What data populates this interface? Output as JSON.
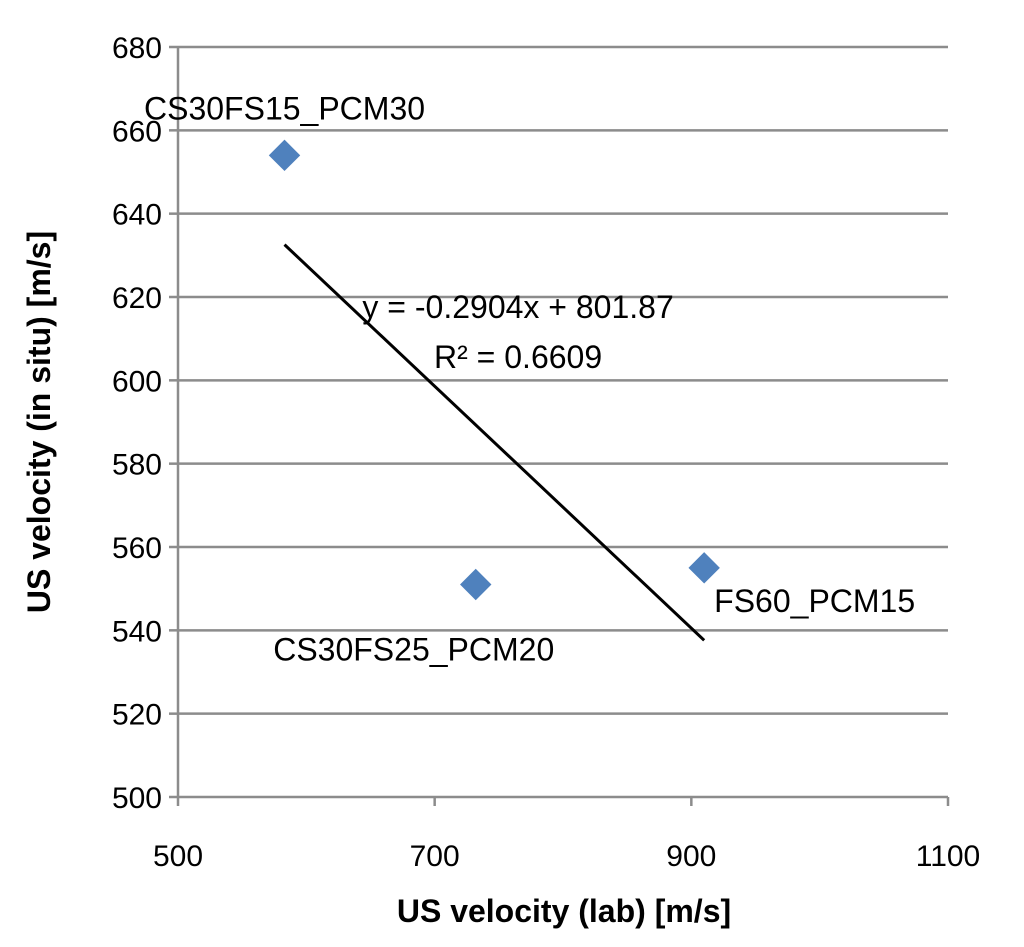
{
  "chart_data": {
    "type": "scatter",
    "xlabel": "US velocity (lab) [m/s]",
    "ylabel": "US velocity (in situ) [m/s]",
    "xlim": [
      500,
      1100
    ],
    "ylim": [
      500,
      680
    ],
    "x_ticks": [
      500,
      700,
      900,
      1100
    ],
    "y_ticks": [
      500,
      520,
      540,
      560,
      580,
      600,
      620,
      640,
      660,
      680
    ],
    "grid": "horizontal",
    "legend": "none",
    "marker_color": "#4f81bd",
    "trendline_color": "#000000",
    "series": [
      {
        "points": [
          {
            "x": 583,
            "y": 654,
            "label": "CS30FS15_PCM30",
            "label_anchor": "middle",
            "label_dx": 0,
            "label_dy": -36
          },
          {
            "x": 732,
            "y": 551,
            "label": "CS30FS25_PCM20",
            "label_anchor": "middle",
            "label_dx": -62,
            "label_dy": 76
          },
          {
            "x": 910,
            "y": 555,
            "label": "FS60_PCM15",
            "label_anchor": "start",
            "label_dx": 10,
            "label_dy": 44
          }
        ]
      }
    ],
    "trendline": {
      "x_range": [
        583,
        910
      ],
      "slope": -0.2904,
      "intercept": 801.87,
      "equation": "y = -0.2904x + 801.87",
      "r2": "R² = 0.6609",
      "label_at": {
        "x": 765,
        "y": 615
      }
    }
  }
}
